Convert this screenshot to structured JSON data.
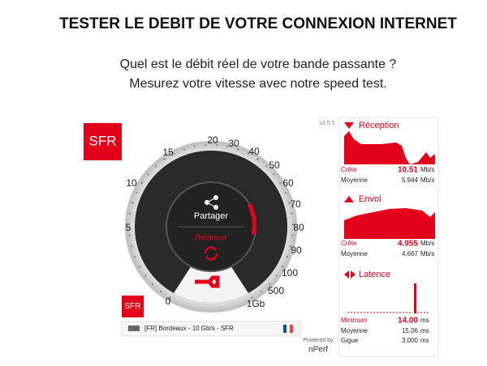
{
  "header": {
    "title": "TESTER LE DEBIT DE VOTRE CONNEXION INTERNET",
    "subtitle_lines": [
      "Quel est le débit réel de votre bande passante ?",
      "Mesurez votre vitesse avec notre speed test."
    ]
  },
  "speedtest": {
    "logo": "SFR",
    "small_logo": "SFR",
    "gauge_labels": [
      "0",
      "5",
      "10",
      "15",
      "20",
      "30",
      "40",
      "50",
      "60",
      "70",
      "80",
      "90",
      "100",
      "500",
      "1Gb"
    ],
    "share": "Partager",
    "restart": "Relancer",
    "server": "[FR] Bordeaux - 10 Gb/s - SFR",
    "version": "v2.5.5",
    "powered_by": "Powered by",
    "brand": "nPerf",
    "panels": [
      {
        "title": "Réception",
        "stats": [
          {
            "label": "Crête",
            "value": "10.51",
            "unit": "Mb/s"
          },
          {
            "label": "Moyenne",
            "value": "5.944",
            "unit": "Mb/s"
          }
        ]
      },
      {
        "title": "Envoi",
        "stats": [
          {
            "label": "Crête",
            "value": "4.955",
            "unit": "Mb/s"
          },
          {
            "label": "Moyenne",
            "value": "4.667",
            "unit": "Mb/s"
          }
        ]
      },
      {
        "title": "Latence",
        "stats": [
          {
            "label": "Minimum",
            "value": "14.00",
            "unit": "ms"
          },
          {
            "label": "Moyenne",
            "value": "15.06",
            "unit": "ms"
          },
          {
            "label": "Gigue",
            "value": "3.000",
            "unit": "ms"
          }
        ]
      }
    ]
  }
}
